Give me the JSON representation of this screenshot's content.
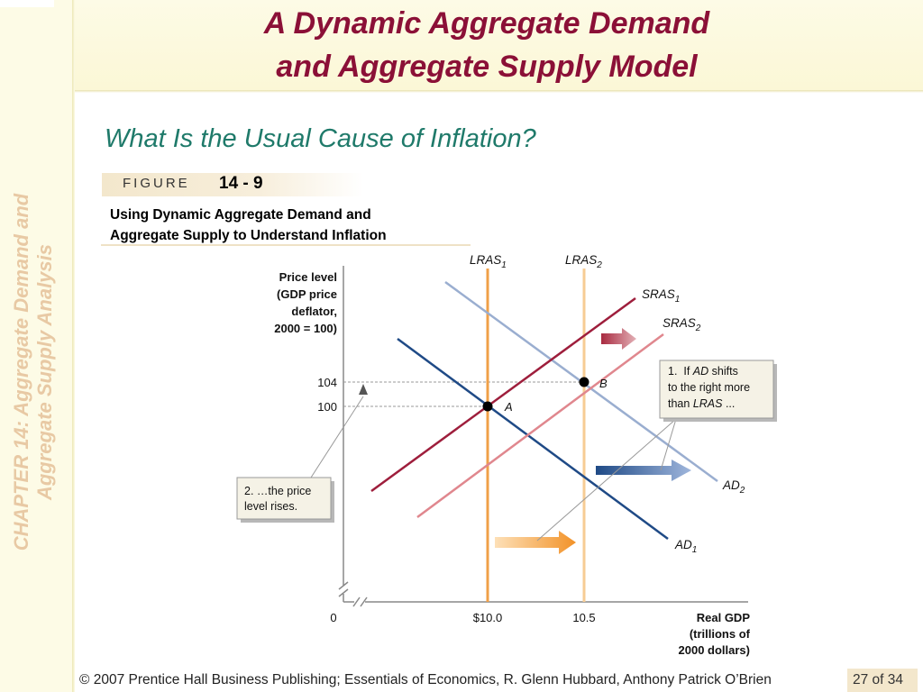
{
  "title_line1": "A Dynamic Aggregate Demand",
  "title_line2": "and Aggregate Supply Model",
  "sidebar_line1": "CHAPTER 14:  Aggregate Demand and",
  "sidebar_line2": "Aggregate Supply Analysis",
  "subtitle": "What Is the Usual Cause of Inflation?",
  "figure_word": "FIGURE",
  "figure_number": "14 - 9",
  "figure_caption_line1": "Using Dynamic Aggregate Demand and",
  "figure_caption_line2": "Aggregate Supply to Understand Inflation",
  "diagram": {
    "y_axis_label": [
      "Price level",
      "(GDP price",
      "deflator,",
      "2000 = 100)"
    ],
    "x_axis_label": [
      "Real GDP",
      "(trillions of",
      "2000 dollars)"
    ],
    "origin": "0",
    "y_ticks": [
      "104",
      "100"
    ],
    "x_ticks": [
      "$10.0",
      "10.5"
    ],
    "lras1": {
      "name": "LRAS",
      "sub": "1"
    },
    "lras2": {
      "name": "LRAS",
      "sub": "2"
    },
    "sras1": {
      "name": "SRAS",
      "sub": "1"
    },
    "sras2": {
      "name": "SRAS",
      "sub": "2"
    },
    "ad1": {
      "name": "AD",
      "sub": "1"
    },
    "ad2": {
      "name": "AD",
      "sub": "2"
    },
    "point_a": "A",
    "point_b": "B",
    "note1": {
      "pre": "1.  If ",
      "em": "AD",
      "mid": " shifts",
      "line2": "to the right more",
      "line3_pre": "than ",
      "line3_em": "LRAS",
      "line3_post": " ..."
    },
    "note2": {
      "line1": "2. …the price",
      "line2": "level rises."
    }
  },
  "footer": "© 2007 Prentice Hall Business Publishing; Essentials of Economics,  R. Glenn Hubbard, Anthony Patrick O’Brien",
  "page": "27 of 34",
  "colors": {
    "title": "#8b1037",
    "subtitle": "#1f7a6a",
    "sidebar_text": "#e8c9a4",
    "lras1": "#f0a048",
    "lras2": "#f7cc94",
    "sras1": "#9e1e3c",
    "sras2": "#e0878e",
    "ad1": "#1f4a86",
    "ad2": "#9aaed0",
    "arrow_orange": "#f29228",
    "arrow_blue": "#2a5a9c",
    "arrow_red": "#a82a40"
  }
}
